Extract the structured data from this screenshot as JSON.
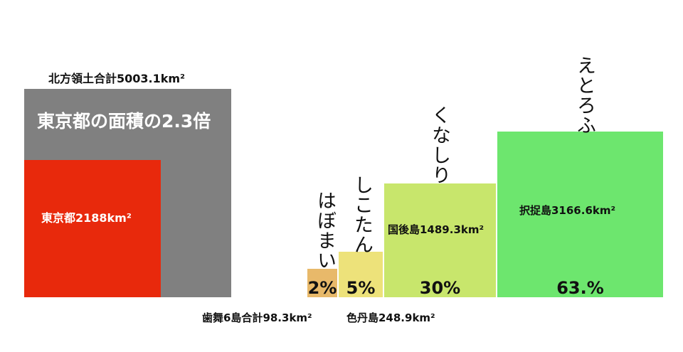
{
  "total": {
    "label": "北方領土合計5003.1km²",
    "comparison": "東京都の面積の2.3倍"
  },
  "tokyo": {
    "label": "東京都2188km²"
  },
  "islands": [
    {
      "reading": "はぼまい",
      "label": "歯舞6島合計98.3km²",
      "share": "2%"
    },
    {
      "reading": "しこたん",
      "label": "色丹島248.9km²",
      "share": "5%"
    },
    {
      "reading": "くなしり",
      "label": "国後島1489.3km²",
      "share": "30%"
    },
    {
      "reading": "えとろふ",
      "label": "択捉島3166.6km²",
      "share": "63.%"
    }
  ]
}
